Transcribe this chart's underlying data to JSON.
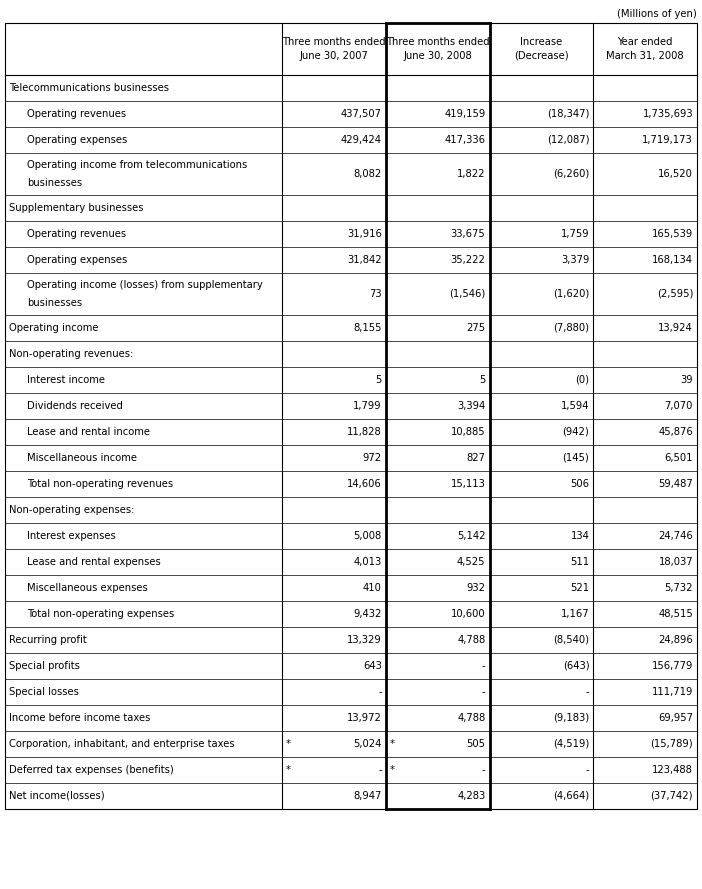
{
  "title_note": "(Millions of yen)",
  "col_headers": [
    "",
    "Three months ended\nJune 30, 2007",
    "Three months ended\nJune 30, 2008",
    "Increase\n(Decrease)",
    "Year ended\nMarch 31, 2008"
  ],
  "rows": [
    {
      "label": "Telecommunications businesses",
      "indent": 0,
      "values": [
        "",
        "",
        "",
        ""
      ],
      "asterisk": [
        false,
        false,
        false,
        false
      ],
      "multiline": false
    },
    {
      "label": "Operating revenues",
      "indent": 1,
      "values": [
        "437,507",
        "419,159",
        "(18,347)",
        "1,735,693"
      ],
      "asterisk": [
        false,
        false,
        false,
        false
      ],
      "multiline": false
    },
    {
      "label": "Operating expenses",
      "indent": 1,
      "values": [
        "429,424",
        "417,336",
        "(12,087)",
        "1,719,173"
      ],
      "asterisk": [
        false,
        false,
        false,
        false
      ],
      "multiline": false
    },
    {
      "label": "Operating income from telecommunications\nbusinesses",
      "indent": 1,
      "values": [
        "8,082",
        "1,822",
        "(6,260)",
        "16,520"
      ],
      "asterisk": [
        false,
        false,
        false,
        false
      ],
      "multiline": true
    },
    {
      "label": "Supplementary businesses",
      "indent": 0,
      "values": [
        "",
        "",
        "",
        ""
      ],
      "asterisk": [
        false,
        false,
        false,
        false
      ],
      "multiline": false
    },
    {
      "label": "Operating revenues",
      "indent": 1,
      "values": [
        "31,916",
        "33,675",
        "1,759",
        "165,539"
      ],
      "asterisk": [
        false,
        false,
        false,
        false
      ],
      "multiline": false
    },
    {
      "label": "Operating expenses",
      "indent": 1,
      "values": [
        "31,842",
        "35,222",
        "3,379",
        "168,134"
      ],
      "asterisk": [
        false,
        false,
        false,
        false
      ],
      "multiline": false
    },
    {
      "label": "Operating income (losses) from supplementary\nbusinesses",
      "indent": 1,
      "values": [
        "73",
        "(1,546)",
        "(1,620)",
        "(2,595)"
      ],
      "asterisk": [
        false,
        false,
        false,
        false
      ],
      "multiline": true
    },
    {
      "label": "Operating income",
      "indent": 0,
      "values": [
        "8,155",
        "275",
        "(7,880)",
        "13,924"
      ],
      "asterisk": [
        false,
        false,
        false,
        false
      ],
      "multiline": false
    },
    {
      "label": "Non-operating revenues:",
      "indent": 0,
      "values": [
        "",
        "",
        "",
        ""
      ],
      "asterisk": [
        false,
        false,
        false,
        false
      ],
      "multiline": false
    },
    {
      "label": "Interest income",
      "indent": 1,
      "values": [
        "5",
        "5",
        "(0)",
        "39"
      ],
      "asterisk": [
        false,
        false,
        false,
        false
      ],
      "multiline": false
    },
    {
      "label": "Dividends received",
      "indent": 1,
      "values": [
        "1,799",
        "3,394",
        "1,594",
        "7,070"
      ],
      "asterisk": [
        false,
        false,
        false,
        false
      ],
      "multiline": false
    },
    {
      "label": "Lease and rental income",
      "indent": 1,
      "values": [
        "11,828",
        "10,885",
        "(942)",
        "45,876"
      ],
      "asterisk": [
        false,
        false,
        false,
        false
      ],
      "multiline": false
    },
    {
      "label": "Miscellaneous income",
      "indent": 1,
      "values": [
        "972",
        "827",
        "(145)",
        "6,501"
      ],
      "asterisk": [
        false,
        false,
        false,
        false
      ],
      "multiline": false
    },
    {
      "label": "Total non-operating revenues",
      "indent": 1,
      "values": [
        "14,606",
        "15,113",
        "506",
        "59,487"
      ],
      "asterisk": [
        false,
        false,
        false,
        false
      ],
      "multiline": false
    },
    {
      "label": "Non-operating expenses:",
      "indent": 0,
      "values": [
        "",
        "",
        "",
        ""
      ],
      "asterisk": [
        false,
        false,
        false,
        false
      ],
      "multiline": false
    },
    {
      "label": "Interest expenses",
      "indent": 1,
      "values": [
        "5,008",
        "5,142",
        "134",
        "24,746"
      ],
      "asterisk": [
        false,
        false,
        false,
        false
      ],
      "multiline": false
    },
    {
      "label": "Lease and rental expenses",
      "indent": 1,
      "values": [
        "4,013",
        "4,525",
        "511",
        "18,037"
      ],
      "asterisk": [
        false,
        false,
        false,
        false
      ],
      "multiline": false
    },
    {
      "label": "Miscellaneous expenses",
      "indent": 1,
      "values": [
        "410",
        "932",
        "521",
        "5,732"
      ],
      "asterisk": [
        false,
        false,
        false,
        false
      ],
      "multiline": false
    },
    {
      "label": "Total non-operating expenses",
      "indent": 1,
      "values": [
        "9,432",
        "10,600",
        "1,167",
        "48,515"
      ],
      "asterisk": [
        false,
        false,
        false,
        false
      ],
      "multiline": false
    },
    {
      "label": "Recurring profit",
      "indent": 0,
      "values": [
        "13,329",
        "4,788",
        "(8,540)",
        "24,896"
      ],
      "asterisk": [
        false,
        false,
        false,
        false
      ],
      "multiline": false
    },
    {
      "label": "Special profits",
      "indent": 0,
      "values": [
        "643",
        "-",
        "(643)",
        "156,779"
      ],
      "asterisk": [
        false,
        false,
        false,
        false
      ],
      "multiline": false
    },
    {
      "label": "Special losses",
      "indent": 0,
      "values": [
        "-",
        "-",
        "-",
        "111,719"
      ],
      "asterisk": [
        false,
        false,
        false,
        false
      ],
      "multiline": false
    },
    {
      "label": "Income before income taxes",
      "indent": 0,
      "values": [
        "13,972",
        "4,788",
        "(9,183)",
        "69,957"
      ],
      "asterisk": [
        false,
        false,
        false,
        false
      ],
      "multiline": false
    },
    {
      "label": "Corporation, inhabitant, and enterprise taxes",
      "indent": 0,
      "values": [
        "5,024",
        "505",
        "(4,519)",
        "(15,789)"
      ],
      "asterisk": [
        true,
        true,
        false,
        false
      ],
      "multiline": false
    },
    {
      "label": "Deferred tax expenses (benefits)",
      "indent": 0,
      "values": [
        "-",
        "-",
        "-",
        "123,488"
      ],
      "asterisk": [
        true,
        true,
        false,
        false
      ],
      "multiline": false
    },
    {
      "label": "Net income(losses)",
      "indent": 0,
      "values": [
        "8,947",
        "4,283",
        "(4,664)",
        "(37,742)"
      ],
      "asterisk": [
        false,
        false,
        false,
        false
      ],
      "multiline": false
    }
  ],
  "row_has_line_below": [
    true,
    true,
    true,
    true,
    true,
    true,
    true,
    true,
    true,
    true,
    true,
    true,
    true,
    true,
    true,
    true,
    true,
    true,
    true,
    true,
    true,
    true,
    true,
    true,
    true,
    true,
    true
  ],
  "bg_color": "#ffffff",
  "font_size": 7.2,
  "header_font_size": 7.2
}
